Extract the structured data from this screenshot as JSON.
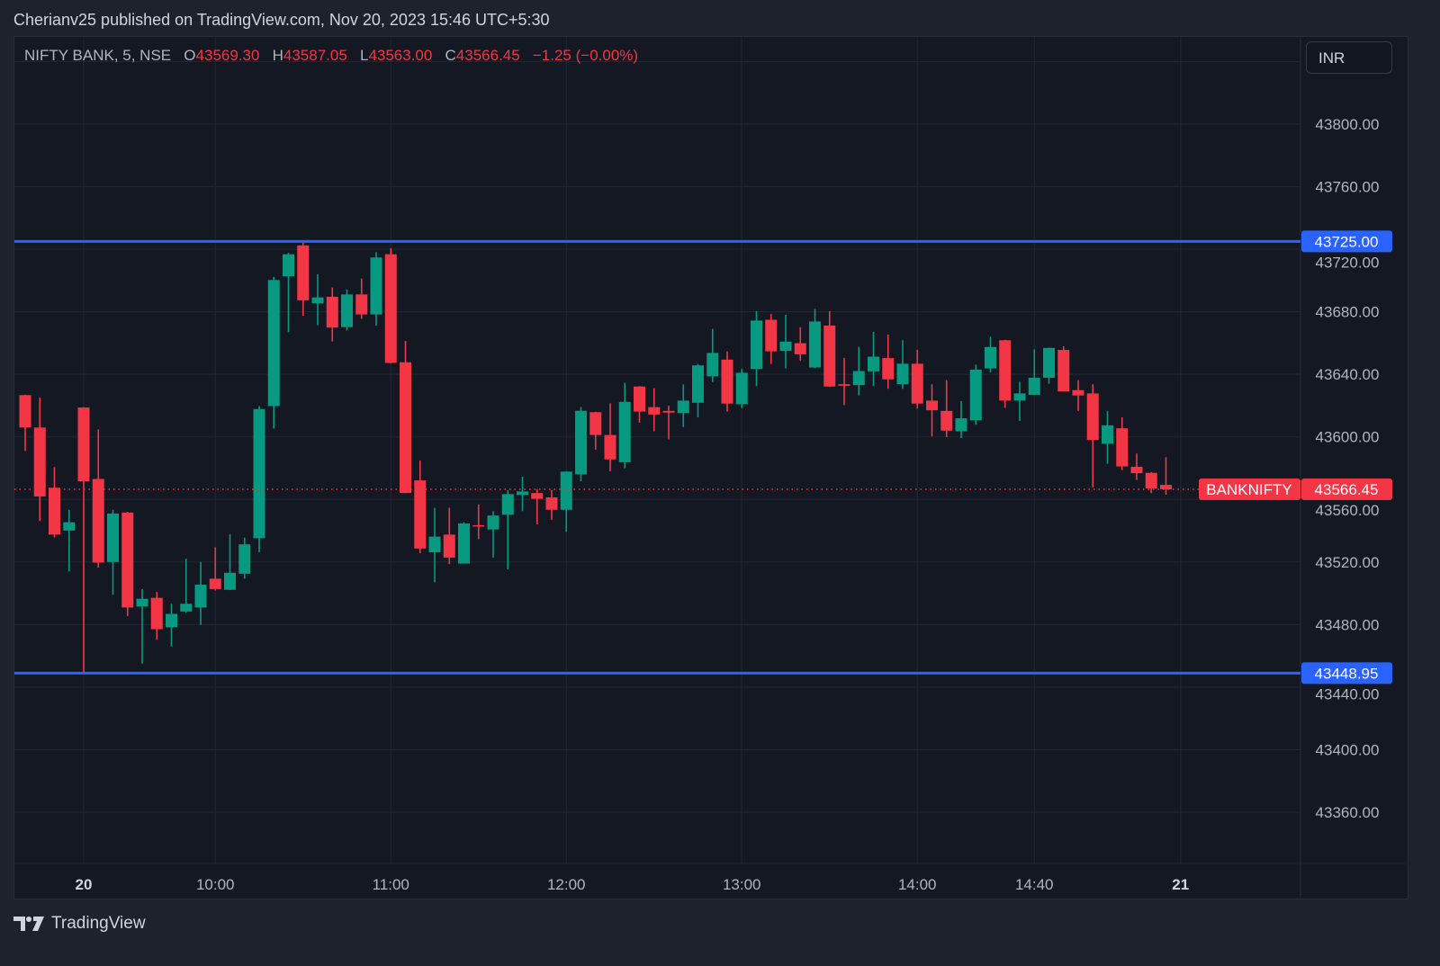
{
  "header": {
    "published": "Cherianv25 published on TradingView.com, Nov 20, 2023 15:46 UTC+5:30"
  },
  "legend": {
    "symbol": "NIFTY BANK, 5, NSE",
    "o_label": "O",
    "o": "43569.30",
    "h_label": "H",
    "h": "43587.05",
    "l_label": "L",
    "l": "43563.00",
    "c_label": "C",
    "c": "43566.45",
    "change": "−1.25 (−0.00%)"
  },
  "currency_button": "INR",
  "brand": "TradingView",
  "colors": {
    "up": "#089981",
    "down": "#f23645",
    "level_line": "#2962ff",
    "background": "#141823"
  },
  "chart_data": {
    "type": "candlestick",
    "title": "",
    "ylim": [
      43320,
      43840
    ],
    "grid": true,
    "y_ticks": [
      43800,
      43760,
      43720,
      43680,
      43640,
      43600,
      43560,
      43520,
      43480,
      43440,
      43400,
      43360
    ],
    "y_tick_labels": [
      "43800.00",
      "43760.00",
      "43720.00",
      "43680.00",
      "43640.00",
      "43600.00",
      "43560.00",
      "43520.00",
      "43480.00",
      "43440.00",
      "43400.00",
      "43360.00"
    ],
    "x_ticks": [
      {
        "time": "11-20 09:15",
        "label": "20"
      },
      {
        "time": "11-20 10:00",
        "label": "10:00"
      },
      {
        "time": "11-20 11:00",
        "label": "11:00"
      },
      {
        "time": "11-20 12:00",
        "label": "12:00"
      },
      {
        "time": "11-20 13:00",
        "label": "13:00"
      },
      {
        "time": "11-20 14:00",
        "label": "14:00"
      },
      {
        "time": "11-20 14:40",
        "label": "14:40"
      },
      {
        "time": "11-21 09:15",
        "label": "21"
      }
    ],
    "horizontal_lines": [
      {
        "price": 43725.0,
        "label": "43725.00"
      },
      {
        "price": 43448.95,
        "label": "43448.95"
      }
    ],
    "last_price": {
      "price": 43566.45,
      "label": "43566.45",
      "symbol_tag": "BANKNIFTY"
    },
    "candle_fields": [
      "time",
      "open",
      "high",
      "low",
      "close"
    ],
    "candles": [
      [
        "11-17 15:10",
        43626.7,
        43627.0,
        43591.0,
        43606.0
      ],
      [
        "11-17 15:15",
        43606.0,
        43625.2,
        43546.3,
        43561.9
      ],
      [
        "11-17 15:20",
        43567.5,
        43580.7,
        43535.6,
        43537.5
      ],
      [
        "11-17 15:25",
        43540.1,
        43553.4,
        43514.0,
        43545.4
      ],
      [
        "11-20 09:15",
        43618.8,
        43619.0,
        43448.95,
        43571.6
      ],
      [
        "11-20 09:20",
        43573.1,
        43604.7,
        43516.4,
        43519.6
      ],
      [
        "11-20 09:25",
        43520.0,
        43553.4,
        43499.0,
        43551.0
      ],
      [
        "11-20 09:30",
        43551.6,
        43552.0,
        43485.3,
        43490.9
      ],
      [
        "11-20 09:35",
        43491.5,
        43502.7,
        43455.0,
        43496.5
      ],
      [
        "11-20 09:40",
        43497.1,
        43500.8,
        43470.2,
        43477.0
      ],
      [
        "11-20 09:45",
        43478.3,
        43493.3,
        43466.0,
        43486.8
      ],
      [
        "11-20 09:50",
        43488.3,
        43522.1,
        43487.7,
        43493.3
      ],
      [
        "11-20 09:55",
        43490.9,
        43520.0,
        43479.8,
        43505.5
      ],
      [
        "11-20 10:00",
        43509.3,
        43529.4,
        43501.8,
        43502.7
      ],
      [
        "11-20 10:05",
        43502.2,
        43537.8,
        43502.0,
        43513.1
      ],
      [
        "11-20 10:10",
        43512.5,
        43535.6,
        43509.3,
        43531.3
      ],
      [
        "11-20 10:15",
        43535.2,
        43619.7,
        43526.2,
        43617.8
      ],
      [
        "11-20 10:20",
        43619.7,
        43702.3,
        43605.4,
        43700.3
      ],
      [
        "11-20 10:25",
        43702.7,
        43717.7,
        43667.0,
        43716.8
      ],
      [
        "11-20 10:30",
        43722.4,
        43725.0,
        43677.4,
        43687.3
      ],
      [
        "11-20 10:35",
        43685.4,
        43704.0,
        43671.4,
        43689.2
      ],
      [
        "11-20 10:40",
        43689.6,
        43695.6,
        43661.0,
        43669.9
      ],
      [
        "11-20 10:45",
        43670.2,
        43694.3,
        43668.0,
        43691.1
      ],
      [
        "11-20 10:50",
        43691.1,
        43701.2,
        43675.5,
        43678.3
      ],
      [
        "11-20 10:55",
        43678.3,
        43718.1,
        43671.2,
        43714.7
      ],
      [
        "11-20 11:00",
        43716.8,
        43720.6,
        43647.0,
        43647.3
      ],
      [
        "11-20 11:05",
        43647.7,
        43661.4,
        43564.0,
        43564.1
      ],
      [
        "11-20 11:10",
        43572.2,
        43584.8,
        43525.6,
        43528.6
      ],
      [
        "11-20 11:15",
        43526.2,
        43554.7,
        43507.0,
        43536.2
      ],
      [
        "11-20 11:20",
        43537.5,
        43554.7,
        43518.7,
        43522.8
      ],
      [
        "11-20 11:25",
        43519.0,
        43545.4,
        43519.0,
        43544.6
      ],
      [
        "11-20 11:30",
        43543.5,
        43556.8,
        43534.6,
        43542.7
      ],
      [
        "11-20 11:35",
        43540.8,
        43552.5,
        43522.8,
        43549.7
      ],
      [
        "11-20 11:40",
        43550.2,
        43566.0,
        43515.3,
        43563.4
      ],
      [
        "11-20 11:45",
        43562.8,
        43574.5,
        43552.5,
        43565.1
      ],
      [
        "11-20 11:50",
        43564.1,
        43566.6,
        43544.0,
        43560.4
      ],
      [
        "11-20 11:55",
        43561.3,
        43566.0,
        43546.9,
        43553.4
      ],
      [
        "11-20 12:00",
        43553.4,
        43578.0,
        43539.3,
        43577.8
      ],
      [
        "11-20 12:05",
        43576.0,
        43619.2,
        43571.6,
        43616.7
      ],
      [
        "11-20 12:10",
        43615.8,
        43616.0,
        43591.8,
        43601.2
      ],
      [
        "11-20 12:15",
        43601.2,
        43621.5,
        43578.0,
        43585.6
      ],
      [
        "11-20 12:20",
        43583.8,
        43634.6,
        43580.0,
        43622.4
      ],
      [
        "11-20 12:25",
        43632.2,
        43632.5,
        43609.1,
        43616.2
      ],
      [
        "11-20 12:30",
        43619.0,
        43631.2,
        43603.6,
        43614.3
      ],
      [
        "11-20 12:35",
        43616.6,
        43620.0,
        43598.4,
        43615.5
      ],
      [
        "11-20 12:40",
        43615.3,
        43633.5,
        43606.3,
        43623.2
      ],
      [
        "11-20 12:45",
        43621.8,
        43646.6,
        43612.5,
        43645.7
      ],
      [
        "11-20 12:50",
        43638.7,
        43669.1,
        43635.0,
        43653.7
      ],
      [
        "11-20 12:55",
        43649.4,
        43654.7,
        43616.2,
        43621.3
      ],
      [
        "11-20 13:00",
        43620.9,
        43643.4,
        43618.5,
        43641.0
      ],
      [
        "11-20 13:05",
        43643.4,
        43680.4,
        43632.5,
        43674.4
      ],
      [
        "11-20 13:10",
        43674.9,
        43678.5,
        43646.6,
        43654.7
      ],
      [
        "11-20 13:15",
        43655.0,
        43678.1,
        43643.8,
        43660.9
      ],
      [
        "11-20 13:20",
        43659.9,
        43670.1,
        43648.7,
        43652.8
      ],
      [
        "11-20 13:25",
        43644.4,
        43681.9,
        43644.0,
        43673.8
      ],
      [
        "11-20 13:30",
        43671.2,
        43680.4,
        43632.0,
        43632.2
      ],
      [
        "11-20 13:35",
        43633.7,
        43650.4,
        43620.3,
        43632.7
      ],
      [
        "11-20 13:40",
        43633.1,
        43657.5,
        43626.5,
        43642.1
      ],
      [
        "11-20 13:45",
        43641.9,
        43667.2,
        43632.5,
        43651.3
      ],
      [
        "11-20 13:50",
        43650.4,
        43665.4,
        43630.8,
        43636.8
      ],
      [
        "11-20 13:55",
        43633.7,
        43661.8,
        43630.8,
        43646.8
      ],
      [
        "11-20 14:00",
        43646.8,
        43655.6,
        43618.1,
        43621.3
      ],
      [
        "11-20 14:05",
        43623.2,
        43633.7,
        43600.3,
        43617.0
      ],
      [
        "11-20 14:10",
        43616.6,
        43636.3,
        43599.9,
        43604.0
      ],
      [
        "11-20 14:15",
        43603.6,
        43622.8,
        43599.3,
        43611.9
      ],
      [
        "11-20 14:20",
        43610.6,
        43646.2,
        43607.8,
        43643.0
      ],
      [
        "11-20 14:25",
        43643.8,
        43664.1,
        43641.2,
        43657.5
      ],
      [
        "11-20 14:30",
        43661.8,
        43662.0,
        43618.5,
        43623.2
      ],
      [
        "11-20 14:35",
        43623.2,
        43635.3,
        43610.2,
        43627.8
      ],
      [
        "11-20 14:40",
        43626.9,
        43656.0,
        43627.0,
        43637.8
      ],
      [
        "11-20 14:45",
        43637.8,
        43657.0,
        43634.0,
        43656.9
      ],
      [
        "11-20 14:50",
        43655.6,
        43658.0,
        43629.0,
        43629.0
      ],
      [
        "11-20 14:55",
        43629.9,
        43636.3,
        43616.6,
        43626.5
      ],
      [
        "11-20 15:00",
        43627.8,
        43633.7,
        43567.8,
        43598.0
      ],
      [
        "11-20 15:05",
        43595.6,
        43616.6,
        43582.8,
        43607.4
      ],
      [
        "11-20 15:10",
        43605.5,
        43612.5,
        43578.7,
        43581.1
      ],
      [
        "11-20 15:15",
        43580.9,
        43589.4,
        43572.5,
        43576.8
      ],
      [
        "11-20 15:20",
        43577.0,
        43577.5,
        43564.0,
        43567.0
      ],
      [
        "11-20 15:25",
        43569.3,
        43587.05,
        43563.0,
        43566.45
      ]
    ]
  }
}
